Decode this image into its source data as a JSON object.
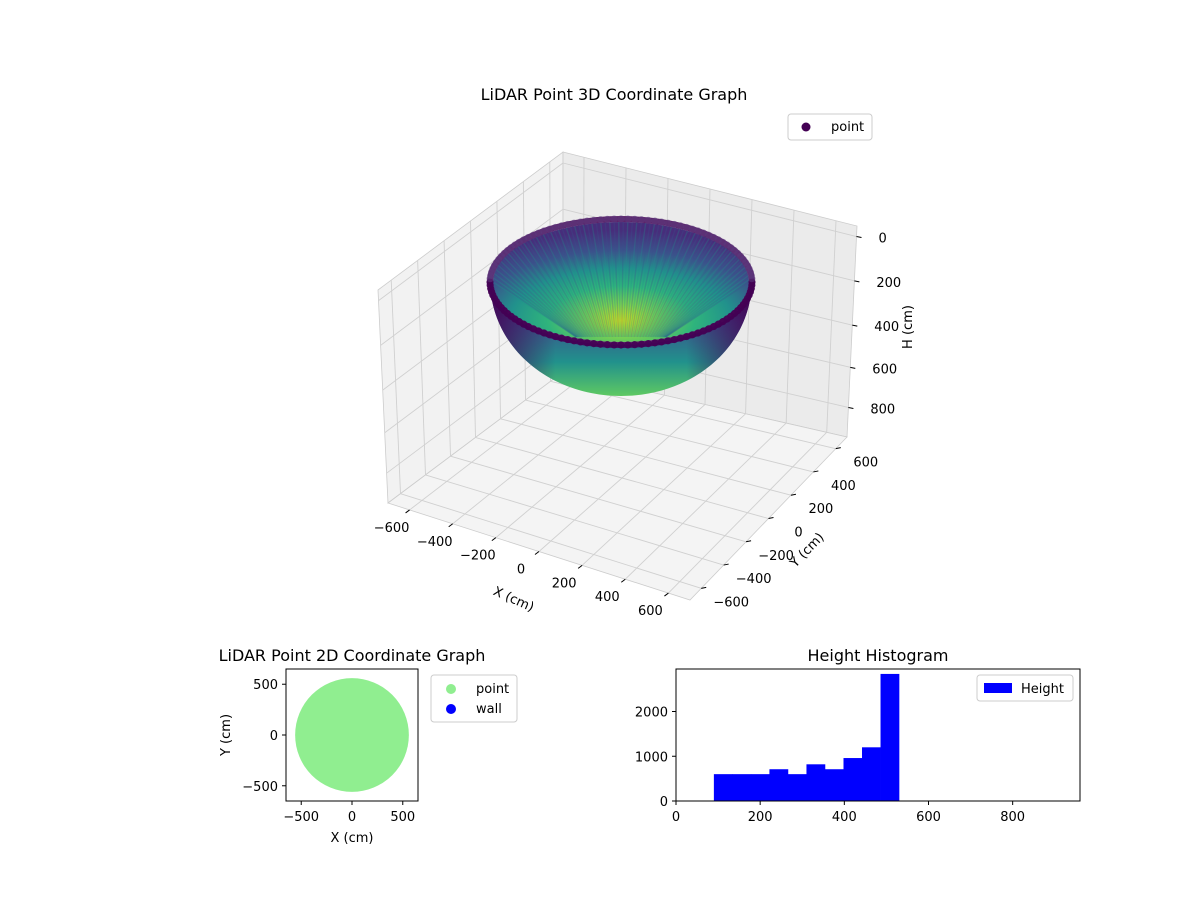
{
  "chart_data": [
    {
      "type": "scatter",
      "projection": "3d",
      "title": "LiDAR Point 3D Coordinate Graph",
      "xlabel": "X (cm)",
      "ylabel": "Y (cm)",
      "zlabel": "H (cm)",
      "x_ticks": [
        "−600",
        "−400",
        "−200",
        "0",
        "200",
        "400",
        "600"
      ],
      "y_ticks": [
        "−600",
        "−400",
        "−200",
        "0",
        "200",
        "400",
        "600"
      ],
      "z_ticks": [
        "0",
        "200",
        "400",
        "600",
        "800"
      ],
      "xlim": [
        -650,
        650
      ],
      "ylim": [
        -650,
        650
      ],
      "zlim": [
        0,
        950
      ],
      "z_inverted": true,
      "colormap": "viridis",
      "shape": "hemisphere bowl",
      "radius": 550,
      "max_depth": 550,
      "legend": {
        "label": "point",
        "color": "#440154",
        "position": "top-right"
      },
      "grid": true
    },
    {
      "type": "scatter",
      "title": "LiDAR Point 2D Coordinate Graph",
      "xlabel": "X (cm)",
      "ylabel": "Y (cm)",
      "x_ticks": [
        "−500",
        "0",
        "500"
      ],
      "y_ticks": [
        "500",
        "0",
        "−500"
      ],
      "xlim": [
        -650,
        650
      ],
      "ylim": [
        -650,
        650
      ],
      "series": [
        {
          "name": "point",
          "color": "#90ee90",
          "shape": "filled disc",
          "center": [
            0,
            0
          ],
          "radius": 560
        },
        {
          "name": "wall",
          "color": "#0000ff"
        }
      ],
      "legend_position": "outside right"
    },
    {
      "type": "bar",
      "title": "Height Histogram",
      "xlabel": "",
      "ylabel": "",
      "xlim": [
        0,
        960
      ],
      "ylim": [
        0,
        2950
      ],
      "x_ticks": [
        "0",
        "200",
        "400",
        "600",
        "800"
      ],
      "y_ticks": [
        "0",
        "1000",
        "2000"
      ],
      "bin_edges": [
        90,
        134,
        178,
        222,
        266,
        310,
        354,
        398,
        442,
        486,
        530
      ],
      "values": [
        600,
        600,
        600,
        710,
        600,
        820,
        710,
        960,
        1200,
        2840
      ],
      "color": "#0000ff",
      "legend": {
        "label": "Height",
        "color": "#0000ff",
        "position": "top-right"
      }
    }
  ]
}
